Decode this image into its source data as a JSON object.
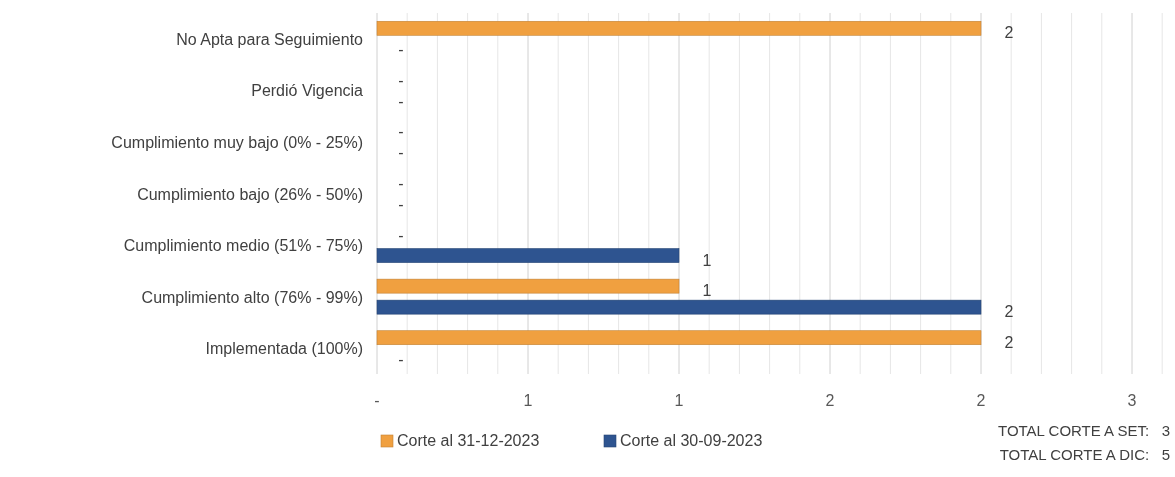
{
  "chart_data": {
    "type": "bar",
    "orientation": "horizontal",
    "categories": [
      "No Apta para Seguimiento",
      "Perdió Vigencia",
      "Cumplimiento muy bajo (0% - 25%)",
      "Cumplimiento bajo (26% - 50%)",
      "Cumplimiento medio (51% - 75%)",
      "Cumplimiento alto (76% - 99%)",
      "Implementada (100%)"
    ],
    "series": [
      {
        "name": "Corte al 31-12-2023",
        "color": "#f0a040",
        "values": [
          2,
          0,
          0,
          0,
          0,
          1,
          2
        ],
        "value_labels": [
          "2",
          "-",
          "-",
          "-",
          "-",
          "1",
          "2"
        ]
      },
      {
        "name": "Corte al 30-09-2023",
        "color": "#2e5490",
        "values": [
          0,
          0,
          0,
          0,
          1,
          2,
          0
        ],
        "value_labels": [
          "-",
          "-",
          "-",
          "-",
          "1",
          "2",
          "-"
        ]
      }
    ],
    "xlim": [
      0,
      2.6
    ],
    "xticks": [
      {
        "value": 0,
        "label": "-"
      },
      {
        "value": 0.1,
        "label": null
      },
      {
        "value": 0.2,
        "label": null
      },
      {
        "value": 0.3,
        "label": null
      },
      {
        "value": 0.4,
        "label": null
      },
      {
        "value": 0.5,
        "label": "1"
      },
      {
        "value": 0.6,
        "label": null
      },
      {
        "value": 0.7,
        "label": null
      },
      {
        "value": 0.8,
        "label": null
      },
      {
        "value": 0.9,
        "label": null
      },
      {
        "value": 1,
        "label": "1"
      },
      {
        "value": 1.1,
        "label": null
      },
      {
        "value": 1.2,
        "label": null
      },
      {
        "value": 1.3,
        "label": null
      },
      {
        "value": 1.4,
        "label": null
      },
      {
        "value": 1.5,
        "label": "2"
      },
      {
        "value": 1.6,
        "label": null
      },
      {
        "value": 1.7,
        "label": null
      },
      {
        "value": 1.8,
        "label": null
      },
      {
        "value": 1.9,
        "label": null
      },
      {
        "value": 2,
        "label": "2"
      },
      {
        "value": 2.1,
        "label": null
      },
      {
        "value": 2.2,
        "label": null
      },
      {
        "value": 2.3,
        "label": null
      },
      {
        "value": 2.4,
        "label": null
      },
      {
        "value": 2.5,
        "label": "3"
      },
      {
        "value": 2.6,
        "label": null
      }
    ],
    "grid": "x",
    "legend": "bottom",
    "annotations": [
      "TOTAL CORTE A SET:   3",
      "TOTAL CORTE A DIC:   5"
    ]
  }
}
